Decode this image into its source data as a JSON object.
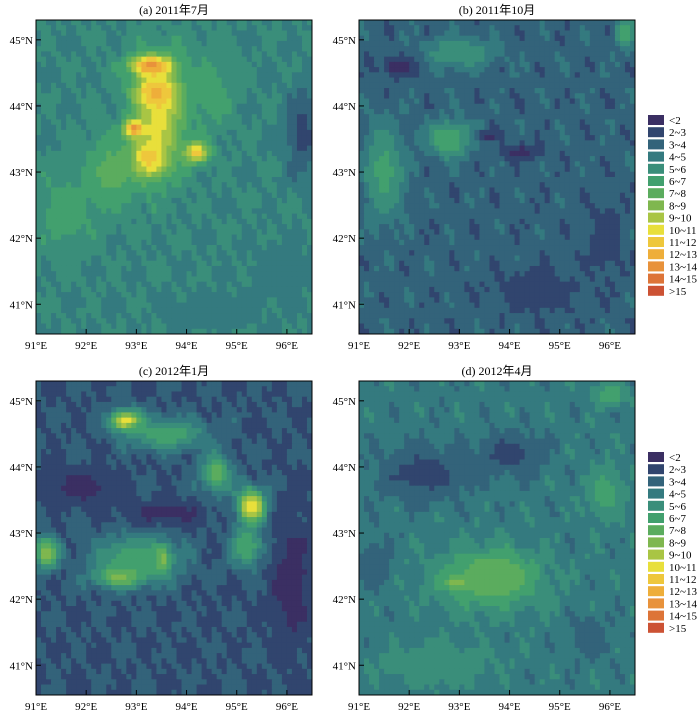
{
  "chart_data": [
    {
      "type": "heatmap",
      "title": "(a) 2011年7月",
      "x_ticks": [
        "91°E",
        "92°E",
        "93°E",
        "94°E",
        "95°E",
        "96°E"
      ],
      "y_ticks": [
        "45°N",
        "44°N",
        "43°N",
        "42°N",
        "41°N"
      ],
      "xlim": [
        91,
        96.5
      ],
      "ylim": [
        40.55,
        45.3
      ],
      "background_level": 5,
      "features": [
        {
          "lon": 93.45,
          "lat": 43.85,
          "rx": 0.65,
          "ry": 1.05,
          "peak": 10.5
        },
        {
          "lon": 93.3,
          "lat": 44.6,
          "rx": 0.55,
          "ry": 0.2,
          "peak": 13.5
        },
        {
          "lon": 93.4,
          "lat": 44.2,
          "rx": 0.5,
          "ry": 0.25,
          "peak": 12.5
        },
        {
          "lon": 93.2,
          "lat": 43.2,
          "rx": 0.45,
          "ry": 0.35,
          "peak": 12.5
        },
        {
          "lon": 92.95,
          "lat": 43.65,
          "rx": 0.25,
          "ry": 0.15,
          "peak": 14.5
        },
        {
          "lon": 94.2,
          "lat": 43.3,
          "rx": 0.3,
          "ry": 0.2,
          "peak": 12.5
        },
        {
          "lon": 92.5,
          "lat": 43.0,
          "rx": 0.7,
          "ry": 0.7,
          "peak": 7.5
        },
        {
          "lon": 91.6,
          "lat": 42.4,
          "rx": 0.8,
          "ry": 0.8,
          "peak": 6.5
        },
        {
          "lon": 94.5,
          "lat": 44.2,
          "rx": 0.6,
          "ry": 0.8,
          "peak": 6.5
        },
        {
          "lon": 96.3,
          "lat": 43.6,
          "rx": 0.4,
          "ry": 0.8,
          "peak": 2.5
        },
        {
          "lon": 94.5,
          "lat": 40.9,
          "rx": 1.0,
          "ry": 0.3,
          "peak": 4.0
        },
        {
          "lon": 95.8,
          "lat": 41.5,
          "rx": 0.6,
          "ry": 0.5,
          "peak": 4.0
        }
      ]
    },
    {
      "type": "heatmap",
      "title": "(b) 2011年10月",
      "x_ticks": [
        "91°E",
        "92°E",
        "93°E",
        "94°E",
        "95°E",
        "96°E"
      ],
      "y_ticks": [
        "45°N",
        "44°N",
        "43°N",
        "42°N",
        "41°N"
      ],
      "xlim": [
        91,
        96.5
      ],
      "ylim": [
        40.55,
        45.3
      ],
      "background_level": 3.5,
      "features": [
        {
          "lon": 92.8,
          "lat": 43.5,
          "rx": 0.6,
          "ry": 0.35,
          "peak": 7.0
        },
        {
          "lon": 93.0,
          "lat": 44.8,
          "rx": 0.9,
          "ry": 0.3,
          "peak": 6.0
        },
        {
          "lon": 91.5,
          "lat": 43.0,
          "rx": 0.5,
          "ry": 0.9,
          "peak": 6.5
        },
        {
          "lon": 94.2,
          "lat": 43.3,
          "rx": 0.5,
          "ry": 0.15,
          "peak": 1.5
        },
        {
          "lon": 93.6,
          "lat": 43.55,
          "rx": 0.35,
          "ry": 0.1,
          "peak": 1.5
        },
        {
          "lon": 91.8,
          "lat": 44.6,
          "rx": 0.5,
          "ry": 0.2,
          "peak": 1.5
        },
        {
          "lon": 96.3,
          "lat": 45.1,
          "rx": 0.25,
          "ry": 0.3,
          "peak": 7.0
        },
        {
          "lon": 94.5,
          "lat": 41.2,
          "rx": 1.2,
          "ry": 0.5,
          "peak": 2.5
        },
        {
          "lon": 95.9,
          "lat": 42.0,
          "rx": 0.5,
          "ry": 0.8,
          "peak": 2.5
        }
      ]
    },
    {
      "type": "heatmap",
      "title": "(c) 2012年1月",
      "x_ticks": [
        "91°E",
        "92°E",
        "93°E",
        "94°E",
        "95°E",
        "96°E"
      ],
      "y_ticks": [
        "45°N",
        "44°N",
        "43°N",
        "42°N",
        "41°N"
      ],
      "xlim": [
        91,
        96.5
      ],
      "ylim": [
        40.55,
        45.3
      ],
      "background_level": 3,
      "features": [
        {
          "lon": 92.8,
          "lat": 44.7,
          "rx": 0.4,
          "ry": 0.2,
          "peak": 11.5
        },
        {
          "lon": 93.6,
          "lat": 44.5,
          "rx": 1.0,
          "ry": 0.3,
          "peak": 7.0
        },
        {
          "lon": 95.3,
          "lat": 43.4,
          "rx": 0.35,
          "ry": 0.35,
          "peak": 11.5
        },
        {
          "lon": 94.6,
          "lat": 43.9,
          "rx": 0.4,
          "ry": 0.4,
          "peak": 7.5
        },
        {
          "lon": 93.5,
          "lat": 42.6,
          "rx": 0.2,
          "ry": 0.25,
          "peak": 11.5
        },
        {
          "lon": 92.7,
          "lat": 42.35,
          "rx": 0.6,
          "ry": 0.2,
          "peak": 9.5
        },
        {
          "lon": 93.0,
          "lat": 42.6,
          "rx": 1.1,
          "ry": 0.45,
          "peak": 7.0
        },
        {
          "lon": 91.2,
          "lat": 42.7,
          "rx": 0.3,
          "ry": 0.3,
          "peak": 9.0
        },
        {
          "lon": 91.9,
          "lat": 43.7,
          "rx": 0.9,
          "ry": 0.3,
          "peak": 1.5
        },
        {
          "lon": 93.6,
          "lat": 43.3,
          "rx": 1.0,
          "ry": 0.22,
          "peak": 1.5
        },
        {
          "lon": 96.1,
          "lat": 42.3,
          "rx": 0.5,
          "ry": 1.3,
          "peak": 1.5
        },
        {
          "lon": 92.6,
          "lat": 40.9,
          "rx": 1.2,
          "ry": 0.3,
          "peak": 3.0
        },
        {
          "lon": 95.2,
          "lat": 42.8,
          "rx": 0.4,
          "ry": 0.4,
          "peak": 7.0
        }
      ]
    },
    {
      "type": "heatmap",
      "title": "(d) 2012年4月",
      "x_ticks": [
        "91°E",
        "92°E",
        "93°E",
        "94°E",
        "95°E",
        "96°E"
      ],
      "y_ticks": [
        "45°N",
        "44°N",
        "43°N",
        "42°N",
        "41°N"
      ],
      "xlim": [
        91,
        96.5
      ],
      "ylim": [
        40.55,
        45.3
      ],
      "background_level": 4.5,
      "features": [
        {
          "lon": 93.7,
          "lat": 42.35,
          "rx": 0.6,
          "ry": 0.3,
          "peak": 10.5
        },
        {
          "lon": 93.0,
          "lat": 42.25,
          "rx": 0.3,
          "ry": 0.12,
          "peak": 11.5
        },
        {
          "lon": 93.6,
          "lat": 42.3,
          "rx": 1.4,
          "ry": 0.6,
          "peak": 7.5
        },
        {
          "lon": 92.3,
          "lat": 43.9,
          "rx": 1.2,
          "ry": 0.5,
          "peak": 2.5
        },
        {
          "lon": 94.0,
          "lat": 44.2,
          "rx": 0.8,
          "ry": 0.4,
          "peak": 2.5
        },
        {
          "lon": 91.3,
          "lat": 42.5,
          "rx": 0.4,
          "ry": 0.5,
          "peak": 3.0
        },
        {
          "lon": 95.9,
          "lat": 43.6,
          "rx": 0.5,
          "ry": 0.5,
          "peak": 6.5
        },
        {
          "lon": 92.5,
          "lat": 41.0,
          "rx": 1.4,
          "ry": 0.4,
          "peak": 6.0
        },
        {
          "lon": 95.6,
          "lat": 41.4,
          "rx": 0.5,
          "ry": 0.4,
          "peak": 3.0
        },
        {
          "lon": 96.0,
          "lat": 45.1,
          "rx": 0.4,
          "ry": 0.2,
          "peak": 7.0
        }
      ]
    }
  ],
  "legend": {
    "labels": [
      "<2",
      "2~3",
      "3~4",
      "4~5",
      "5~6",
      "6~7",
      "7~8",
      "8~9",
      "9~10",
      "10~11",
      "11~12",
      "12~13",
      "13~14",
      "14~15",
      ">15"
    ],
    "colors": [
      "#3b2f63",
      "#31456e",
      "#33637a",
      "#347a7f",
      "#3a8e7a",
      "#42a06e",
      "#5bac5e",
      "#7fb74f",
      "#a9c544",
      "#e8df3b",
      "#eec73c",
      "#eeae3a",
      "#e8923b",
      "#dd7438",
      "#cc5234"
    ]
  }
}
